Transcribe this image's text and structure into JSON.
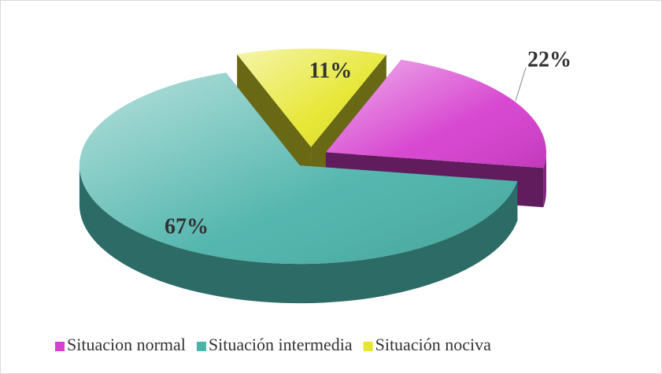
{
  "chart_data": {
    "type": "pie",
    "categories": [
      "Situacion normal",
      "Situación intermedia",
      "Situación nociva"
    ],
    "values": [
      22,
      67,
      11
    ],
    "value_labels": [
      "22%",
      "67%",
      "11%"
    ],
    "colors": [
      "#d63fcf",
      "#4bb3aa",
      "#e6e62e"
    ],
    "legend": "bottom"
  }
}
